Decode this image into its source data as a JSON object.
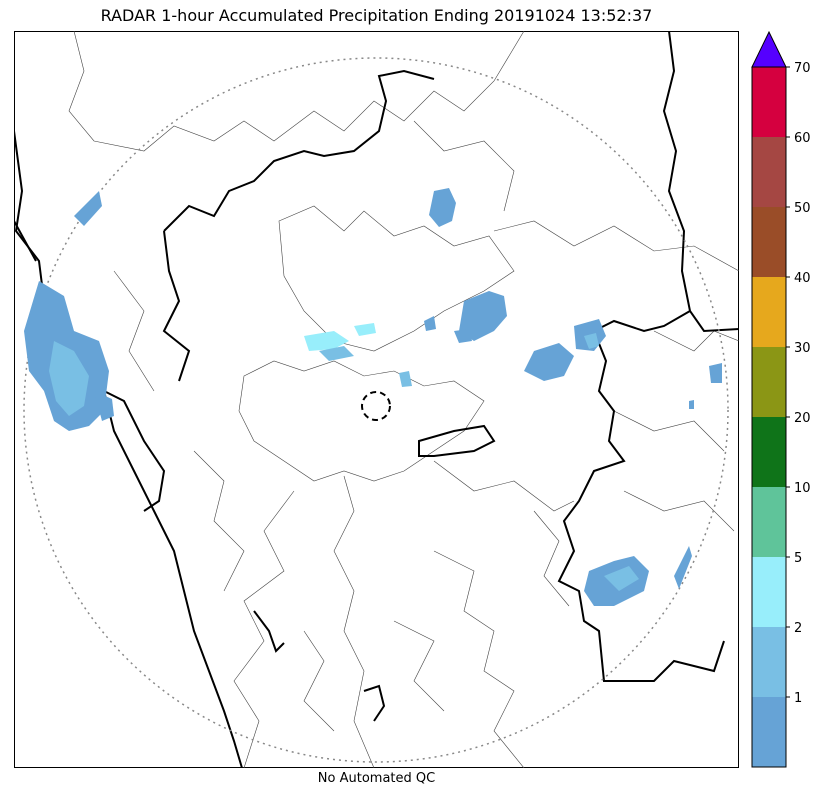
{
  "title": "RADAR 1-hour Accumulated Precipitation Ending 20191024 13:52:37",
  "footer": "No Automated QC",
  "colorbar": {
    "levels": [
      {
        "label": "",
        "color": "#66a3d6"
      },
      {
        "label": "1",
        "color": "#79bfe4"
      },
      {
        "label": "2",
        "color": "#98eefb"
      },
      {
        "label": "5",
        "color": "#5fc49a"
      },
      {
        "label": "10",
        "color": "#0f7419"
      },
      {
        "label": "20",
        "color": "#8b9615"
      },
      {
        "label": "30",
        "color": "#e6a81d"
      },
      {
        "label": "40",
        "color": "#9a4d28"
      },
      {
        "label": "50",
        "color": "#a54743"
      },
      {
        "label": "60",
        "color": "#d5003f"
      },
      {
        "label": "70",
        "color": "#5500ff"
      }
    ],
    "extend": "max"
  }
}
